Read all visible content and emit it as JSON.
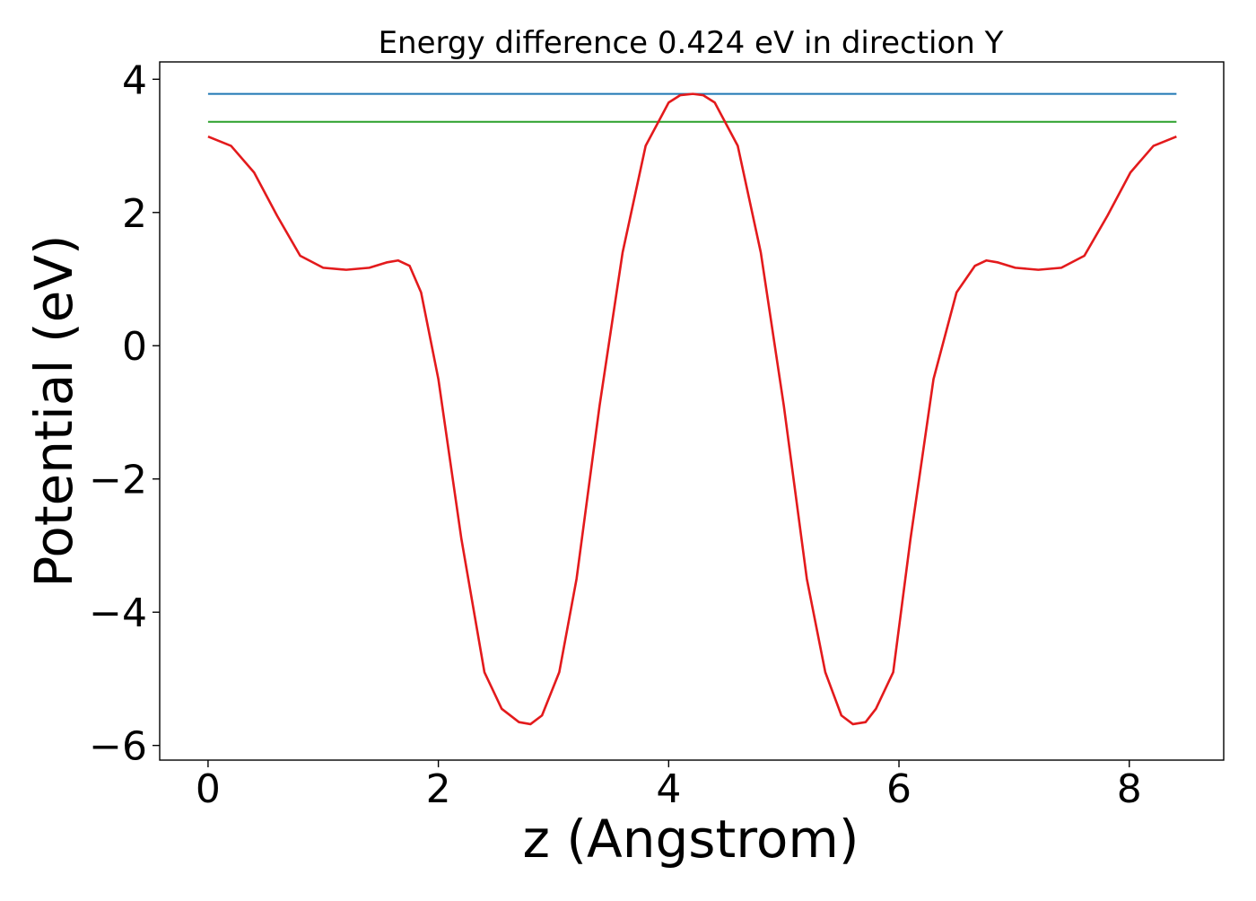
{
  "colors": {
    "upper_line": "#1f77b4",
    "lower_line": "#2ca02c",
    "potential_curve": "#e31a1c"
  },
  "chart_data": {
    "type": "line",
    "title": "Energy difference 0.424 eV in direction Y",
    "xlabel": "z (Angstrom)",
    "ylabel": "Potential (eV)",
    "xlim": [
      -0.42,
      8.82
    ],
    "ylim": [
      -6.22,
      4.26
    ],
    "xticks": [
      0,
      2,
      4,
      6,
      8
    ],
    "xtick_labels": [
      "0",
      "2",
      "4",
      "6",
      "8"
    ],
    "yticks": [
      -6,
      -4,
      -2,
      0,
      2,
      4
    ],
    "ytick_labels": [
      "−6",
      "−4",
      "−2",
      "0",
      "2",
      "4"
    ],
    "grid": false,
    "series": [
      {
        "kind": "constant",
        "color": "#1f77b4",
        "x": [
          0,
          8.41
        ],
        "y": [
          3.78,
          3.78
        ]
      },
      {
        "kind": "constant",
        "color": "#2ca02c",
        "x": [
          0,
          8.41
        ],
        "y": [
          3.36,
          3.36
        ]
      },
      {
        "kind": "potential",
        "color": "#e31a1c",
        "x": [
          0,
          0.2,
          0.4,
          0.6,
          0.8,
          1.0,
          1.2,
          1.4,
          1.55,
          1.65,
          1.75,
          1.85,
          2.0,
          2.2,
          2.4,
          2.55,
          2.7,
          2.8,
          2.9,
          3.05,
          3.2,
          3.4,
          3.6,
          3.8,
          4.0,
          4.1,
          4.21,
          4.3,
          4.4,
          4.6,
          4.8,
          5.0,
          5.2,
          5.36,
          5.5,
          5.6,
          5.71,
          5.8,
          5.95,
          6.1,
          6.3,
          6.5,
          6.66,
          6.76,
          6.86,
          7.01,
          7.21,
          7.41,
          7.61,
          7.81,
          8.01,
          8.21,
          8.41
        ],
        "y": [
          3.14,
          3.0,
          2.6,
          1.95,
          1.35,
          1.17,
          1.14,
          1.17,
          1.25,
          1.28,
          1.2,
          0.8,
          -0.5,
          -2.9,
          -4.9,
          -5.45,
          -5.65,
          -5.68,
          -5.55,
          -4.9,
          -3.5,
          -0.9,
          1.4,
          3.0,
          3.65,
          3.76,
          3.78,
          3.76,
          3.65,
          3.0,
          1.4,
          -0.9,
          -3.5,
          -4.9,
          -5.55,
          -5.68,
          -5.65,
          -5.45,
          -4.9,
          -2.9,
          -0.5,
          0.8,
          1.2,
          1.28,
          1.25,
          1.17,
          1.14,
          1.17,
          1.35,
          1.95,
          2.6,
          3.0,
          3.14
        ]
      }
    ]
  }
}
